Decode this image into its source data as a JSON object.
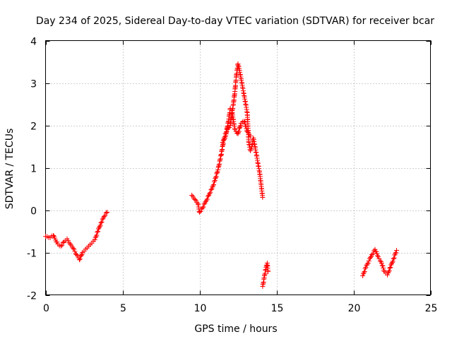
{
  "chart_data": {
    "type": "scatter",
    "title": "Day 234 of 2025, Sidereal Day-to-day VTEC variation (SDTVAR) for receiver bcar",
    "xlabel": "GPS time / hours",
    "ylabel": "SDTVAR / TECUs",
    "xlim": [
      0,
      25
    ],
    "ylim": [
      -2,
      4
    ],
    "x_ticks": [
      "0",
      "5",
      "10",
      "15",
      "20",
      "25"
    ],
    "y_ticks": [
      "-2",
      "-1",
      "0",
      "1",
      "2",
      "3",
      "4"
    ],
    "grid": true,
    "marker": "+",
    "color": "#ff0000",
    "series": [
      {
        "name": "segment-1",
        "x": [
          0.0,
          0.3,
          0.5,
          0.8,
          1.0,
          1.2,
          1.4,
          1.6,
          1.8,
          2.0,
          2.2,
          2.4,
          2.6,
          2.8,
          3.0,
          3.2,
          3.4,
          3.6,
          3.8,
          4.0
        ],
        "y": [
          -0.62,
          -0.65,
          -0.6,
          -0.8,
          -0.85,
          -0.75,
          -0.68,
          -0.8,
          -0.9,
          -1.05,
          -1.17,
          -1.0,
          -0.92,
          -0.85,
          -0.78,
          -0.7,
          -0.5,
          -0.3,
          -0.15,
          -0.05
        ]
      },
      {
        "name": "segment-2",
        "x": [
          9.5,
          9.7,
          9.9,
          10.0,
          10.2,
          10.4,
          10.6,
          10.8,
          11.0,
          11.2,
          11.4,
          11.6,
          11.8,
          12.0,
          12.1,
          12.2,
          12.3,
          12.4,
          12.5,
          12.6,
          12.7,
          12.8,
          12.9,
          13.0,
          13.1,
          13.2,
          13.3,
          13.4,
          13.5,
          13.6,
          13.7,
          13.8,
          13.9,
          14.0,
          14.1
        ],
        "y": [
          0.35,
          0.25,
          0.15,
          -0.05,
          0.05,
          0.2,
          0.35,
          0.5,
          0.7,
          0.95,
          1.3,
          1.7,
          1.9,
          2.0,
          2.3,
          2.5,
          2.8,
          3.2,
          3.45,
          3.3,
          3.1,
          2.9,
          2.7,
          2.5,
          2.3,
          1.6,
          1.4,
          1.5,
          1.7,
          1.5,
          1.3,
          1.1,
          0.9,
          0.6,
          0.3
        ]
      },
      {
        "name": "segment-3",
        "x": [
          11.5,
          11.7,
          11.9,
          12.0,
          12.1,
          12.3,
          12.5,
          12.7,
          12.9,
          13.1,
          13.3
        ],
        "y": [
          1.6,
          1.75,
          2.15,
          2.4,
          2.35,
          1.9,
          1.8,
          2.05,
          2.1,
          1.85,
          1.75
        ]
      },
      {
        "name": "segment-4",
        "x": [
          14.1,
          14.2,
          14.3,
          14.4,
          14.45
        ],
        "y": [
          -1.8,
          -1.6,
          -1.4,
          -1.25,
          -1.45
        ]
      },
      {
        "name": "segment-5",
        "x": [
          20.6,
          20.8,
          21.0,
          21.2,
          21.4,
          21.6,
          21.8,
          22.0,
          22.2,
          22.4,
          22.6,
          22.8
        ],
        "y": [
          -1.55,
          -1.35,
          -1.2,
          -1.05,
          -0.93,
          -1.1,
          -1.22,
          -1.45,
          -1.53,
          -1.35,
          -1.15,
          -0.95
        ]
      }
    ]
  }
}
